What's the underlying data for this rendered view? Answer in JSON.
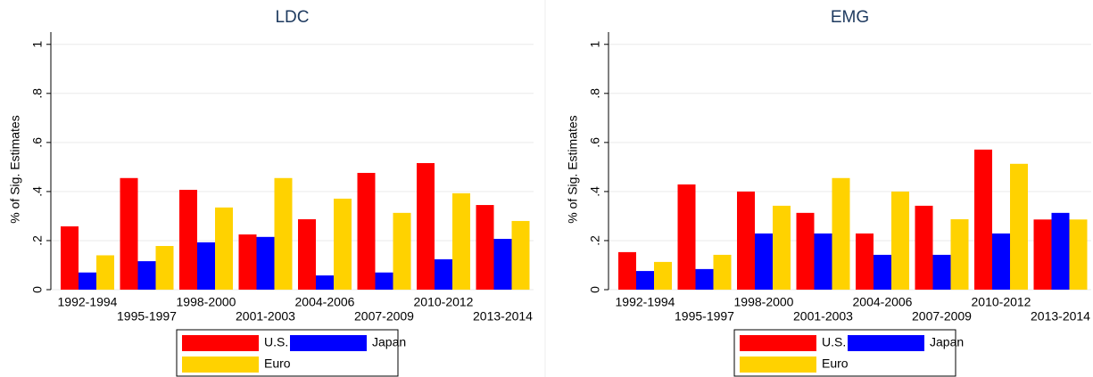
{
  "chart_data": [
    {
      "type": "bar",
      "title": "LDC",
      "y_label": "% of Sig. Estimates",
      "categories": [
        "1992-1994",
        "1995-1997",
        "1998-2000",
        "2001-2003",
        "2004-2006",
        "2007-2009",
        "2010-2012",
        "2013-2014"
      ],
      "series": [
        {
          "name": "U.S.",
          "color": "#ff0000",
          "values": [
            0.258,
            0.455,
            0.407,
            0.225,
            0.287,
            0.476,
            0.516,
            0.345
          ]
        },
        {
          "name": "Japan",
          "color": "#0000ff",
          "values": [
            0.07,
            0.116,
            0.193,
            0.215,
            0.058,
            0.07,
            0.124,
            0.207
          ]
        },
        {
          "name": "Euro",
          "color": "#ffd200",
          "values": [
            0.14,
            0.178,
            0.335,
            0.455,
            0.371,
            0.313,
            0.393,
            0.28
          ]
        }
      ],
      "ylim": [
        0,
        1.05
      ],
      "yticks": [
        0,
        {
          "value": 0.2,
          "label": ".2"
        },
        {
          "value": 0.4,
          "label": ".4"
        },
        {
          "value": 0.6,
          "label": ".6"
        },
        {
          "value": 0.8,
          "label": ".8"
        },
        1
      ],
      "grid": true
    },
    {
      "type": "bar",
      "title": "EMG",
      "y_label": "% of Sig. Estimates",
      "categories": [
        "1992-1994",
        "1995-1997",
        "1998-2000",
        "2001-2003",
        "2004-2006",
        "2007-2009",
        "2010-2012",
        "2013-2014"
      ],
      "series": [
        {
          "name": "U.S.",
          "color": "#ff0000",
          "values": [
            0.153,
            0.429,
            0.4,
            0.313,
            0.229,
            0.342,
            0.571,
            0.286
          ]
        },
        {
          "name": "Japan",
          "color": "#0000ff",
          "values": [
            0.076,
            0.084,
            0.229,
            0.229,
            0.142,
            0.142,
            0.229,
            0.313
          ]
        },
        {
          "name": "Euro",
          "color": "#ffd200",
          "values": [
            0.113,
            0.142,
            0.342,
            0.455,
            0.4,
            0.287,
            0.513,
            0.286
          ]
        }
      ],
      "ylim": [
        0,
        1.05
      ],
      "yticks": [
        0,
        {
          "value": 0.2,
          "label": ".2"
        },
        {
          "value": 0.4,
          "label": ".4"
        },
        {
          "value": 0.6,
          "label": ".6"
        },
        {
          "value": 0.8,
          "label": ".8"
        },
        1
      ],
      "grid": true
    }
  ]
}
